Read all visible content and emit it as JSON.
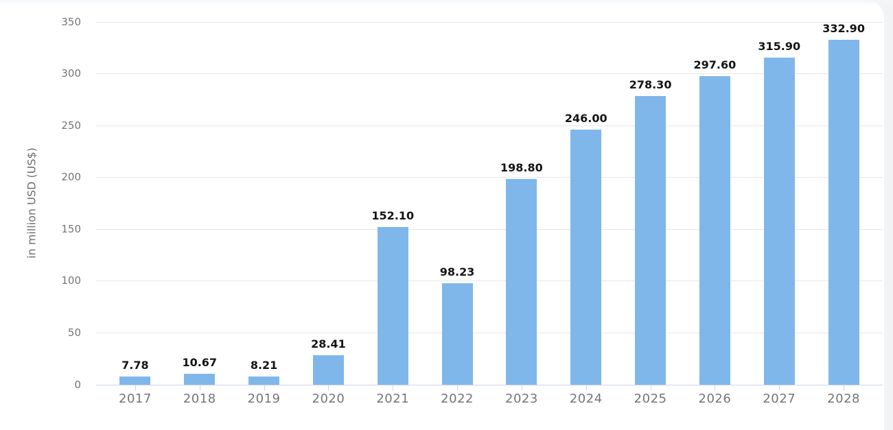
{
  "chart_data": {
    "type": "bar",
    "title": "",
    "categories": [
      "2017",
      "2018",
      "2019",
      "2020",
      "2021",
      "2022",
      "2023",
      "2024",
      "2025",
      "2026",
      "2027",
      "2028"
    ],
    "values": [
      7.78,
      10.67,
      8.21,
      28.41,
      152.1,
      98.23,
      198.8,
      246.0,
      278.3,
      297.6,
      315.9,
      332.9
    ],
    "value_labels": [
      "7.78",
      "10.67",
      "8.21",
      "28.41",
      "152.10",
      "98.23",
      "198.80",
      "246.00",
      "278.30",
      "297.60",
      "315.90",
      "332.90"
    ],
    "xlabel": "",
    "ylabel": "in million USD (US$)",
    "ylim": [
      0,
      350
    ],
    "yticks": [
      0,
      50,
      100,
      150,
      200,
      250,
      300,
      350
    ],
    "grid": true,
    "legend": "none",
    "colors": {
      "bar": "#7fb7ea",
      "grid": "#e7e7e7",
      "axis_line": "#ccd6eb",
      "tick_label": "#757575",
      "value_label": "#141414",
      "y_axis_title": "#6d6d6d"
    }
  }
}
